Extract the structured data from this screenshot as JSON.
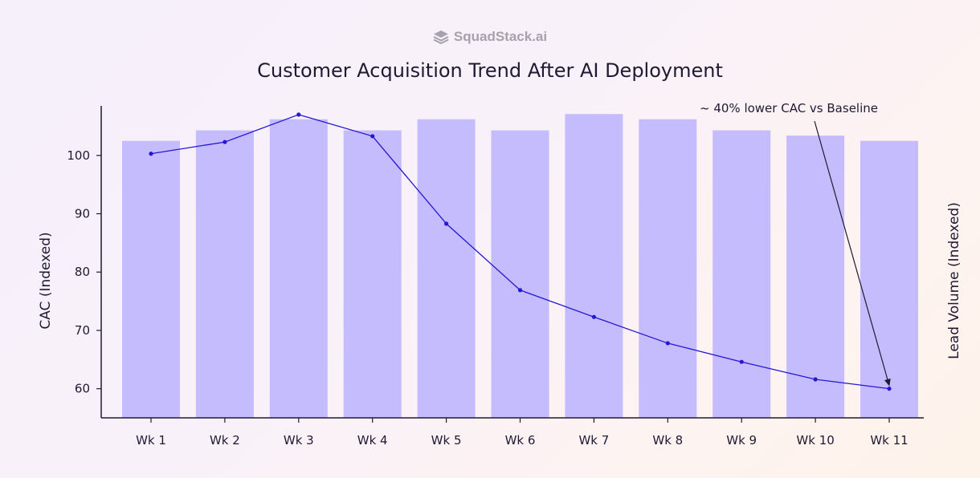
{
  "brand": {
    "name": "SquadStack.ai",
    "icon": "layers-icon"
  },
  "chart_data": {
    "type": "bar+line",
    "title": "Customer Acquisition Trend After AI Deployment",
    "categories": [
      "Wk 1",
      "Wk 2",
      "Wk 3",
      "Wk 4",
      "Wk 5",
      "Wk 6",
      "Wk 7",
      "Wk 8",
      "Wk 9",
      "Wk 10",
      "Wk 11"
    ],
    "series": [
      {
        "name": "Lead Volume",
        "type": "bar",
        "axis": "right",
        "values": [
          102.5,
          104.3,
          106.2,
          104.3,
          106.2,
          104.3,
          107.1,
          106.2,
          104.3,
          103.4,
          102.5
        ]
      },
      {
        "name": "CAC",
        "type": "line",
        "axis": "left",
        "values": [
          100.3,
          102.3,
          107.0,
          103.3,
          88.3,
          76.9,
          72.3,
          67.8,
          64.6,
          61.6,
          60.0
        ]
      }
    ],
    "ylabel": "CAC (Indexed)",
    "y2label": "Lead Volume (Indexed)",
    "ylim": [
      55,
      108.5
    ],
    "yticks": [
      60,
      70,
      80,
      90,
      100
    ],
    "annotation": {
      "text": "~ 40% lower CAC vs Baseline",
      "target": "Wk 11"
    },
    "colors": {
      "bar": "#c5bcfd",
      "line": "#2418d6",
      "axis": "#1f1a33"
    }
  }
}
